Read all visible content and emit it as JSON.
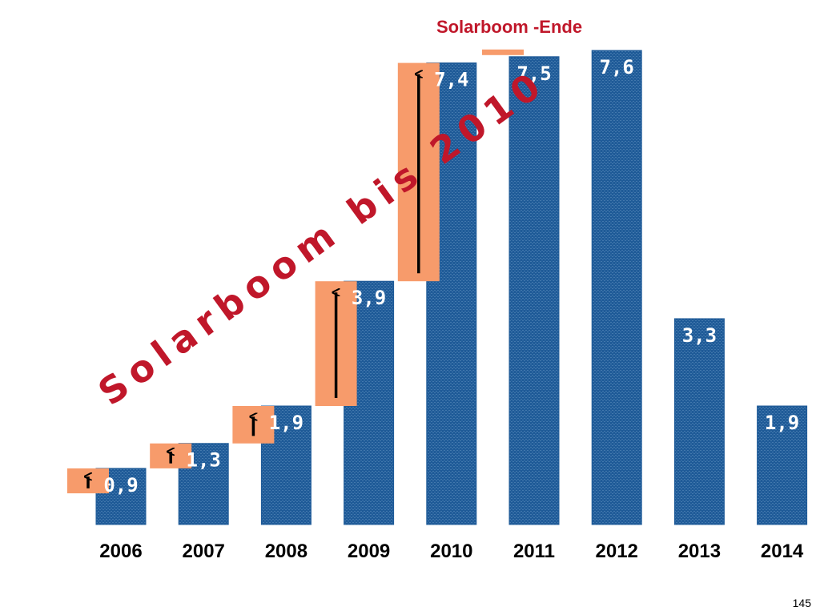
{
  "chart_data": {
    "type": "bar",
    "title": "Solarboom -Ende",
    "annotation": "Solarboom bis 2010",
    "categories": [
      "2006",
      "2007",
      "2008",
      "2009",
      "2010",
      "2011",
      "2012",
      "2013",
      "2014"
    ],
    "values": [
      0.9,
      1.3,
      1.9,
      3.9,
      7.4,
      7.5,
      7.6,
      3.3,
      1.9
    ],
    "value_labels": [
      "0,9",
      "1,3",
      "1,9",
      "3,9",
      "7,4",
      "7,5",
      "7,6",
      "3,3",
      "1,9"
    ],
    "growth_increments": [
      0.4,
      0.4,
      0.6,
      2.0,
      3.5,
      0.1,
      0,
      0,
      0
    ],
    "ylim": [
      0,
      7.6
    ],
    "xlabel": "",
    "ylabel": "",
    "grid": false,
    "legend": "none"
  },
  "page_number": "145",
  "colors": {
    "bar": "#1f5b98",
    "bar_pattern": "#6d9bc8",
    "increment": "#f79b6b",
    "title": "#c0172a",
    "arrow": "#000000"
  }
}
